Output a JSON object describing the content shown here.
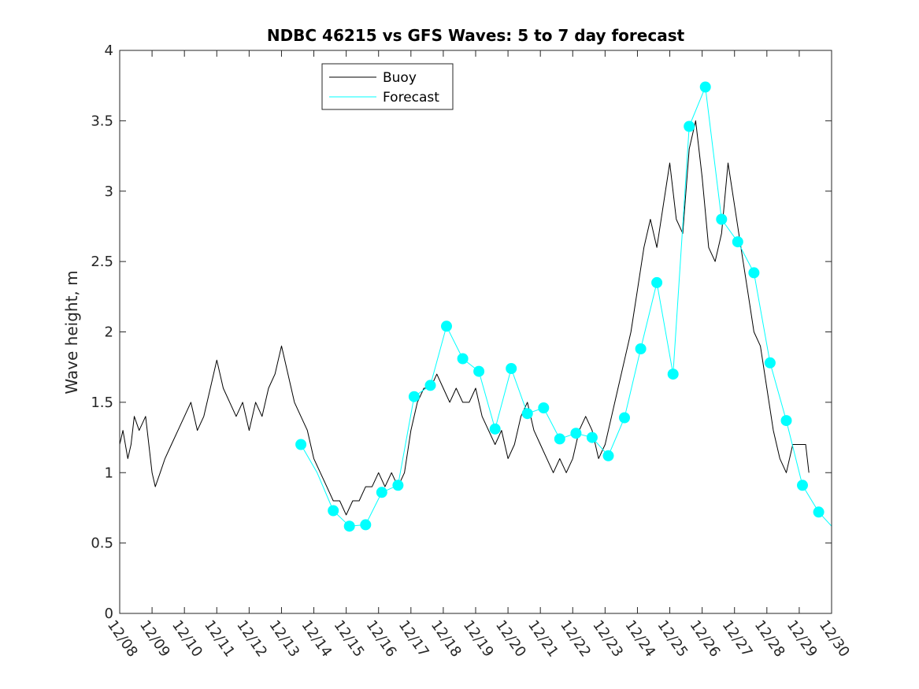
{
  "chart_data": {
    "type": "line",
    "title": "NDBC 46215 vs GFS Waves: 5 to 7 day forecast",
    "xlabel": "",
    "ylabel": "Wave height, m",
    "xlim": [
      0,
      22
    ],
    "ylim": [
      0,
      4
    ],
    "x_tick_values": [
      0,
      1,
      2,
      3,
      4,
      5,
      6,
      7,
      8,
      9,
      10,
      11,
      12,
      13,
      14,
      15,
      16,
      17,
      18,
      19,
      20,
      21,
      22
    ],
    "x_tick_labels": [
      "12/08",
      "12/09",
      "12/10",
      "12/11",
      "12/12",
      "12/13",
      "12/14",
      "12/15",
      "12/16",
      "12/17",
      "12/18",
      "12/19",
      "12/20",
      "12/21",
      "12/22",
      "12/23",
      "12/24",
      "12/25",
      "12/26",
      "12/27",
      "12/28",
      "12/29",
      "12/30"
    ],
    "y_tick_values": [
      0,
      0.5,
      1,
      1.5,
      2,
      2.5,
      3,
      3.5,
      4
    ],
    "y_tick_labels": [
      "0",
      "0.5",
      "1",
      "1.5",
      "2",
      "2.5",
      "3",
      "3.5",
      "4"
    ],
    "grid": false,
    "legend": {
      "placement": "top-left",
      "entries": [
        "Buoy",
        "Forecast"
      ]
    },
    "colors": {
      "buoy": "#000000",
      "forecast": "#00ffff"
    },
    "series": [
      {
        "name": "Buoy",
        "x": [
          0,
          0.1,
          0.25,
          0.35,
          0.45,
          0.6,
          0.8,
          1.0,
          1.1,
          1.25,
          1.4,
          1.6,
          1.8,
          2.0,
          2.2,
          2.4,
          2.6,
          2.8,
          3.0,
          3.2,
          3.4,
          3.6,
          3.8,
          4.0,
          4.2,
          4.4,
          4.6,
          4.8,
          4.9,
          5.0,
          5.2,
          5.4,
          5.6,
          5.8,
          6.0,
          6.2,
          6.4,
          6.6,
          6.8,
          7.0,
          7.2,
          7.4,
          7.6,
          7.8,
          8.0,
          8.2,
          8.4,
          8.6,
          8.8,
          9.0,
          9.2,
          9.4,
          9.6,
          9.8,
          10.0,
          10.2,
          10.4,
          10.6,
          10.8,
          11.0,
          11.2,
          11.4,
          11.6,
          11.8,
          12.0,
          12.2,
          12.4,
          12.6,
          12.8,
          13.0,
          13.2,
          13.4,
          13.6,
          13.8,
          14.0,
          14.2,
          14.4,
          14.6,
          14.8,
          15.0,
          15.2,
          15.4,
          15.6,
          15.8,
          16.0,
          16.2,
          16.4,
          16.6,
          16.8,
          17.0,
          17.2,
          17.4,
          17.6,
          17.8,
          18.0,
          18.2,
          18.4,
          18.6,
          18.8,
          19.0,
          19.2,
          19.4,
          19.6,
          19.8,
          20.0,
          20.2,
          20.4,
          20.6,
          20.8,
          21.0,
          21.2,
          21.3
        ],
        "values": [
          1.2,
          1.3,
          1.1,
          1.2,
          1.4,
          1.3,
          1.4,
          1.0,
          0.9,
          1.0,
          1.1,
          1.2,
          1.3,
          1.4,
          1.5,
          1.3,
          1.4,
          1.6,
          1.8,
          1.6,
          1.5,
          1.4,
          1.5,
          1.3,
          1.5,
          1.4,
          1.6,
          1.7,
          1.8,
          1.9,
          1.7,
          1.5,
          1.4,
          1.3,
          1.1,
          1.0,
          0.9,
          0.8,
          0.8,
          0.7,
          0.8,
          0.8,
          0.9,
          0.9,
          1.0,
          0.9,
          1.0,
          0.9,
          1.0,
          1.3,
          1.5,
          1.6,
          1.6,
          1.7,
          1.6,
          1.5,
          1.6,
          1.5,
          1.5,
          1.6,
          1.4,
          1.3,
          1.2,
          1.3,
          1.1,
          1.2,
          1.4,
          1.5,
          1.3,
          1.2,
          1.1,
          1.0,
          1.1,
          1.0,
          1.1,
          1.3,
          1.4,
          1.3,
          1.1,
          1.2,
          1.4,
          1.6,
          1.8,
          2.0,
          2.3,
          2.6,
          2.8,
          2.6,
          2.9,
          3.2,
          2.8,
          2.7,
          3.3,
          3.5,
          3.1,
          2.6,
          2.5,
          2.7,
          3.2,
          2.9,
          2.6,
          2.3,
          2.0,
          1.9,
          1.6,
          1.3,
          1.1,
          1.0,
          1.2,
          1.2,
          1.2,
          1.0
        ]
      },
      {
        "name": "Forecast",
        "x": [
          5.6,
          6.1,
          6.6,
          7.1,
          7.6,
          8.1,
          8.6,
          9.1,
          9.6,
          10.1,
          10.6,
          11.1,
          11.6,
          12.1,
          12.6,
          13.1,
          13.6,
          14.1,
          14.6,
          15.1,
          15.6,
          16.1,
          16.6,
          17.1,
          17.6,
          18.1,
          18.6,
          19.1,
          19.6,
          20.1,
          20.6,
          21.1,
          21.6,
          22.0
        ],
        "values": [
          1.2,
          1.0,
          0.73,
          0.62,
          0.63,
          0.86,
          0.91,
          1.54,
          1.62,
          2.04,
          1.81,
          1.72,
          1.31,
          1.74,
          1.42,
          1.46,
          1.24,
          1.28,
          1.25,
          1.12,
          1.39,
          1.88,
          2.35,
          1.7,
          3.46,
          3.74,
          2.8,
          2.64,
          2.42,
          1.78,
          1.37,
          0.91,
          0.72,
          0.62
        ]
      }
    ],
    "marker_points": {
      "x": [
        5.6,
        6.6,
        7.1,
        7.6,
        8.1,
        8.6,
        9.1,
        9.6,
        10.1,
        10.6,
        11.1,
        11.6,
        12.1,
        12.6,
        13.1,
        13.6,
        14.1,
        14.6,
        15.1,
        15.6,
        16.1,
        16.6,
        17.1,
        17.6,
        18.1,
        18.6,
        19.1,
        19.6,
        20.1,
        20.6,
        21.1,
        21.6
      ],
      "values": [
        1.2,
        0.73,
        0.62,
        0.63,
        0.86,
        0.91,
        1.54,
        1.62,
        2.04,
        1.81,
        1.72,
        1.31,
        1.74,
        1.42,
        1.46,
        1.24,
        1.28,
        1.25,
        1.12,
        1.39,
        1.88,
        2.35,
        1.7,
        3.46,
        3.74,
        2.8,
        2.64,
        2.42,
        1.78,
        1.37,
        0.91,
        0.72
      ]
    }
  }
}
